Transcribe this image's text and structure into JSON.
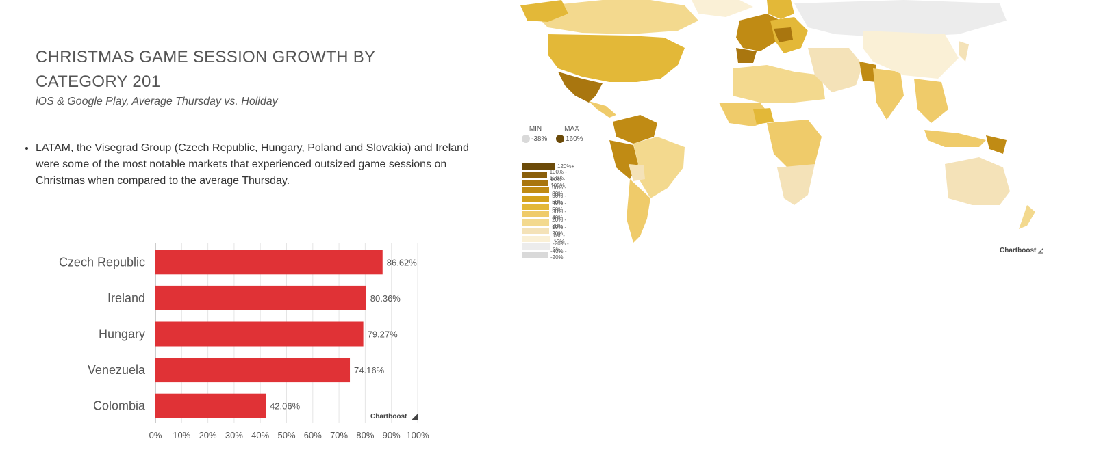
{
  "header": {
    "title": "CHRISTMAS GAME SESSION GROWTH BY CATEGORY 201",
    "subtitle": "iOS & Google Play, Average Thursday vs. Holiday"
  },
  "bullets": [
    "LATAM, the Visegrad Group (Czech Republic, Hungary, Poland and Slovakia) and Ireland were some of the most notable markets that experienced outsized game sessions on Christmas when compared to the average Thursday."
  ],
  "chart_data": [
    {
      "type": "bar",
      "orientation": "horizontal",
      "categories": [
        "Czech Republic",
        "Ireland",
        "Hungary",
        "Venezuela",
        "Colombia"
      ],
      "values": [
        86.62,
        80.36,
        79.27,
        74.16,
        42.06
      ],
      "value_labels": [
        "86.62%",
        "80.36%",
        "79.27%",
        "74.16%",
        "42.06%"
      ],
      "xlim": [
        0,
        100
      ],
      "x_ticks": [
        "0%",
        "10%",
        "20%",
        "30%",
        "40%",
        "50%",
        "60%",
        "70%",
        "80%",
        "90%",
        "100%"
      ],
      "grid": true,
      "bar_color": "#e03236",
      "watermark": "Chartboost"
    },
    {
      "type": "choropleth",
      "min": {
        "label": "MIN",
        "value": "-38%",
        "color": "#d9d9d9"
      },
      "max": {
        "label": "MAX",
        "value": "160%",
        "color": "#6b4a08"
      },
      "legend": [
        {
          "label": "120%+",
          "color": "#6b4a08"
        },
        {
          "label": "100% - 120%",
          "color": "#8a5f0b"
        },
        {
          "label": "80% - 100%",
          "color": "#a9760f"
        },
        {
          "label": "60% - 80%",
          "color": "#c08b14"
        },
        {
          "label": "50% - 60%",
          "color": "#d4a21d"
        },
        {
          "label": "40% - 50%",
          "color": "#e3b838"
        },
        {
          "label": "30% - 40%",
          "color": "#efcb6a"
        },
        {
          "label": "20% - 30%",
          "color": "#f3d98e"
        },
        {
          "label": "10% - 20%",
          "color": "#f4e2b8"
        },
        {
          "label": "0% - 10%",
          "color": "#faf0d6"
        },
        {
          "label": "-20% - 0%",
          "color": "#ececec"
        },
        {
          "label": "-40% - -20%",
          "color": "#d9d9d9"
        }
      ],
      "watermark": "Chartboost"
    }
  ]
}
